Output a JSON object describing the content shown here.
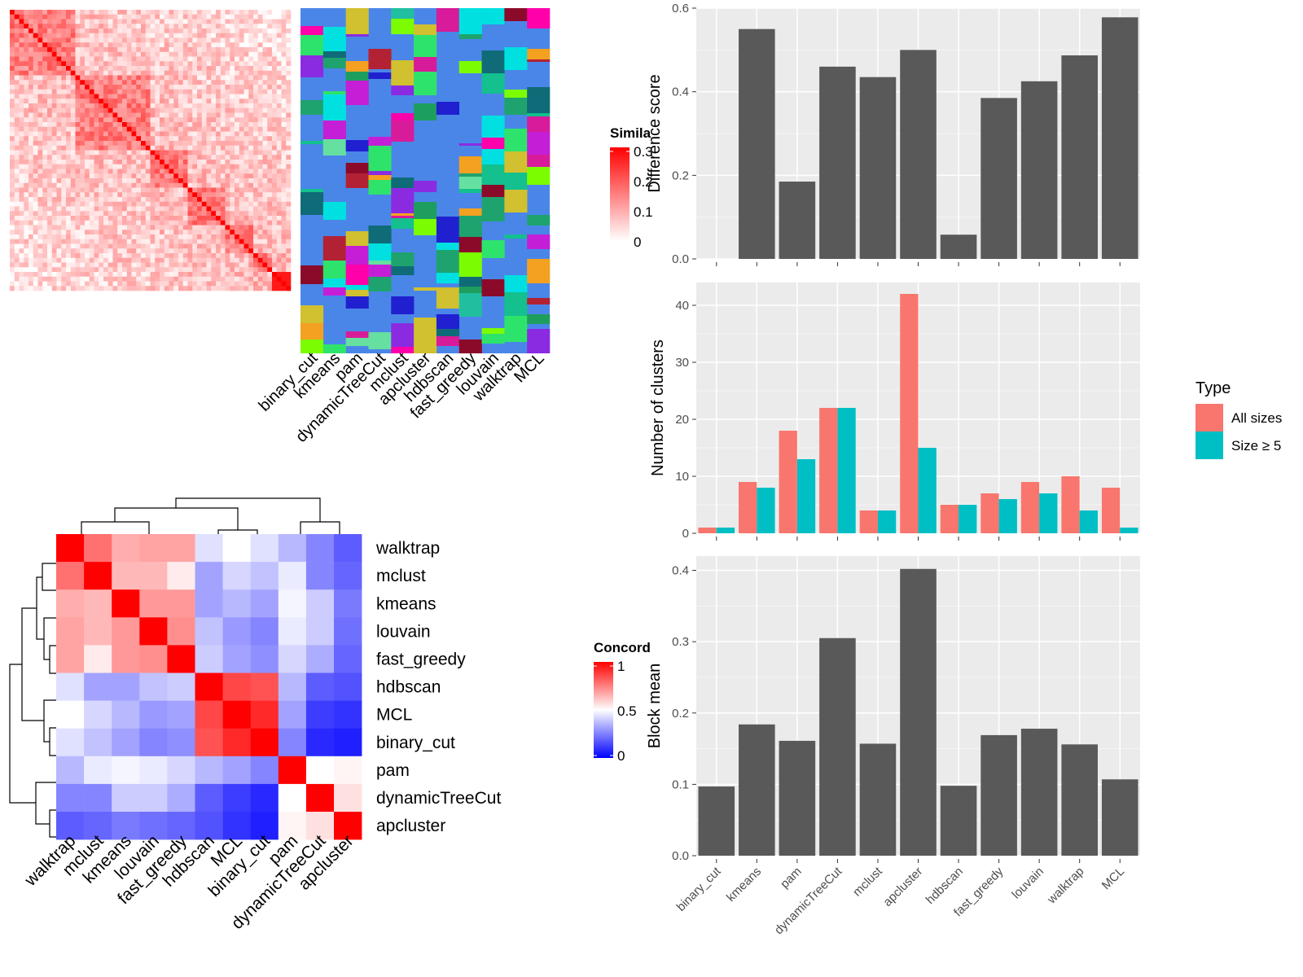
{
  "similarity_legend": {
    "title": "Simila",
    "ticks": [
      "0.3",
      "0.2",
      "0.1",
      "0"
    ],
    "colors": [
      "#ffffff",
      "#ff0000"
    ]
  },
  "assignments_panel": {
    "methods": [
      "binary_cut",
      "kmeans",
      "pam",
      "dynamicTreeCut",
      "mclust",
      "apcluster",
      "hdbscan",
      "fast_greedy",
      "louvain",
      "walktrap",
      "MCL"
    ],
    "background": "#4a86e8"
  },
  "concordance_legend": {
    "title": "Concord",
    "ticks": [
      "1",
      "0.5",
      "0"
    ],
    "colors": [
      "#0000ff",
      "#ffffff",
      "#ff0000"
    ]
  },
  "concordance_heatmap": {
    "rows": [
      "walktrap",
      "mclust",
      "kmeans",
      "louvain",
      "fast_greedy",
      "hdbscan",
      "MCL",
      "binary_cut",
      "pam",
      "dynamicTreeCut",
      "apcluster"
    ],
    "cols": [
      "walktrap",
      "mclust",
      "kmeans",
      "louvain",
      "fast_greedy",
      "hdbscan",
      "MCL",
      "binary_cut",
      "pam",
      "dynamicTreeCut",
      "apcluster"
    ],
    "matrix": [
      [
        1.0,
        0.78,
        0.66,
        0.68,
        0.68,
        0.44,
        0.5,
        0.44,
        0.36,
        0.26,
        0.18
      ],
      [
        0.78,
        1.0,
        0.64,
        0.64,
        0.54,
        0.32,
        0.42,
        0.38,
        0.46,
        0.26,
        0.2
      ],
      [
        0.66,
        0.64,
        1.0,
        0.7,
        0.7,
        0.32,
        0.36,
        0.32,
        0.48,
        0.4,
        0.24
      ],
      [
        0.68,
        0.64,
        0.7,
        1.0,
        0.72,
        0.38,
        0.3,
        0.26,
        0.46,
        0.4,
        0.22
      ],
      [
        0.68,
        0.54,
        0.7,
        0.72,
        1.0,
        0.4,
        0.32,
        0.28,
        0.42,
        0.34,
        0.2
      ],
      [
        0.44,
        0.32,
        0.32,
        0.38,
        0.4,
        1.0,
        0.86,
        0.84,
        0.36,
        0.18,
        0.16
      ],
      [
        0.5,
        0.42,
        0.36,
        0.3,
        0.32,
        0.86,
        1.0,
        0.92,
        0.32,
        0.12,
        0.1
      ],
      [
        0.44,
        0.38,
        0.32,
        0.26,
        0.28,
        0.84,
        0.92,
        1.0,
        0.26,
        0.08,
        0.06
      ],
      [
        0.36,
        0.46,
        0.48,
        0.46,
        0.42,
        0.36,
        0.32,
        0.26,
        1.0,
        0.5,
        0.52
      ],
      [
        0.26,
        0.26,
        0.4,
        0.4,
        0.34,
        0.18,
        0.12,
        0.08,
        0.5,
        1.0,
        0.56
      ],
      [
        0.18,
        0.2,
        0.24,
        0.22,
        0.2,
        0.16,
        0.1,
        0.06,
        0.52,
        0.56,
        1.0
      ]
    ]
  },
  "chart_data": [
    {
      "type": "bar",
      "categories": [
        "binary_cut",
        "kmeans",
        "pam",
        "dynamicTreeCut",
        "mclust",
        "apcluster",
        "hdbscan",
        "fast_greedy",
        "louvain",
        "walktrap",
        "MCL"
      ],
      "values": [
        0.0,
        0.55,
        0.185,
        0.46,
        0.435,
        0.5,
        0.058,
        0.385,
        0.425,
        0.487,
        0.578
      ],
      "ylabel": "Difference score",
      "ylim": [
        0,
        0.6
      ],
      "yticks": [
        "0.0",
        "0.2",
        "0.4",
        "0.6"
      ],
      "grid": true,
      "color": "#595959"
    },
    {
      "type": "bar",
      "categories": [
        "binary_cut",
        "kmeans",
        "pam",
        "dynamicTreeCut",
        "mclust",
        "apcluster",
        "hdbscan",
        "fast_greedy",
        "louvain",
        "walktrap",
        "MCL"
      ],
      "series": [
        {
          "name": "All sizes",
          "values": [
            1,
            9,
            18,
            22,
            4,
            42,
            5,
            7,
            9,
            10,
            8
          ],
          "color": "#f8766d"
        },
        {
          "name": "Size ≥ 5",
          "values": [
            1,
            8,
            13,
            22,
            4,
            15,
            5,
            6,
            7,
            4,
            1
          ],
          "color": "#00bfc4"
        }
      ],
      "ylabel": "Number of clusters",
      "ylim": [
        0,
        44
      ],
      "yticks": [
        "0",
        "10",
        "20",
        "30",
        "40"
      ],
      "legend_title": "Type",
      "legend_position": "right",
      "grid": true
    },
    {
      "type": "bar",
      "categories": [
        "binary_cut",
        "kmeans",
        "pam",
        "dynamicTreeCut",
        "mclust",
        "apcluster",
        "hdbscan",
        "fast_greedy",
        "louvain",
        "walktrap",
        "MCL"
      ],
      "values": [
        0.097,
        0.184,
        0.161,
        0.305,
        0.157,
        0.402,
        0.098,
        0.169,
        0.178,
        0.156,
        0.107
      ],
      "ylabel": "Block mean",
      "ylim": [
        0,
        0.42
      ],
      "yticks": [
        "0.0",
        "0.1",
        "0.2",
        "0.3",
        "0.4"
      ],
      "grid": true,
      "color": "#595959"
    }
  ]
}
